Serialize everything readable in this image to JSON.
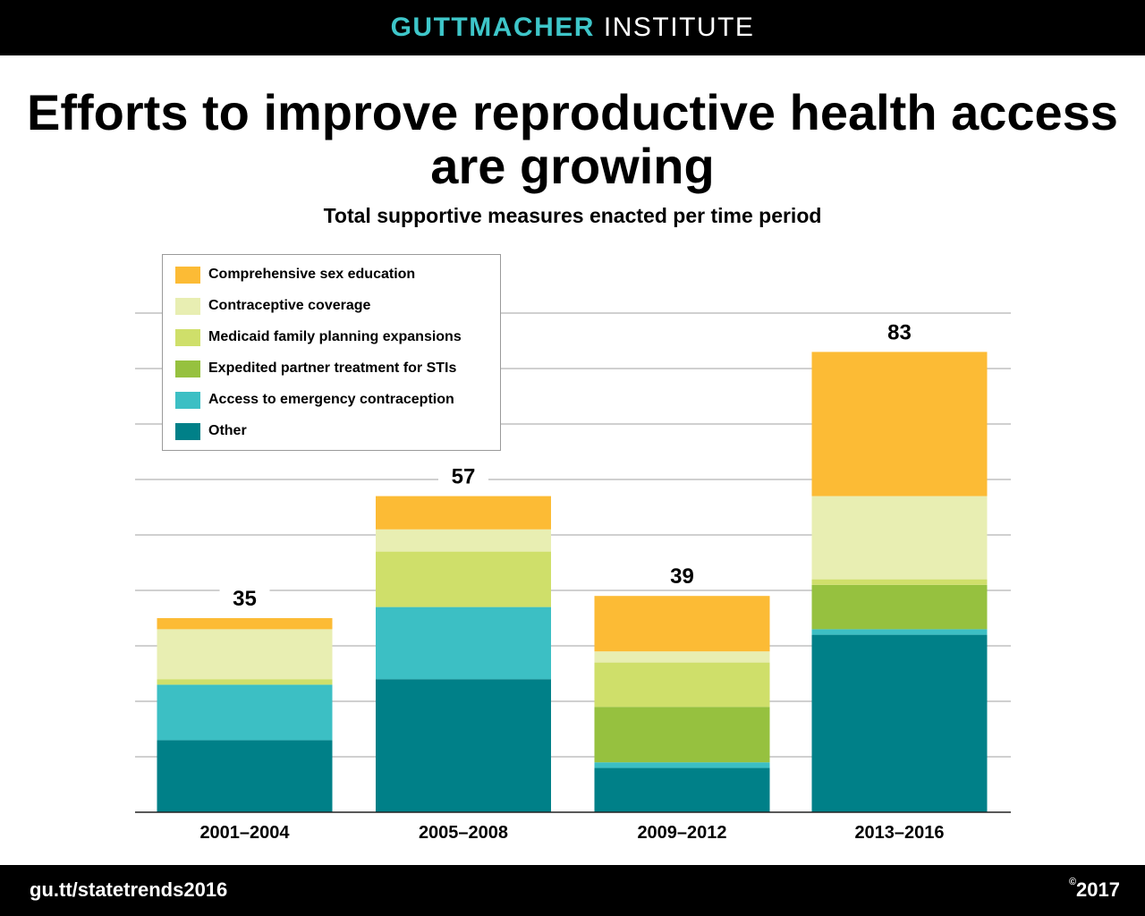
{
  "header": {
    "brand_part1": "GUTTMACHER",
    "brand_part2": "INSTITUTE",
    "brand_color": "#3ec6c9"
  },
  "footer": {
    "url": "gu.tt/statetrends2016",
    "copyright_symbol": "©",
    "year": "2017"
  },
  "chart_data": {
    "type": "bar",
    "stacked": true,
    "title": "Efforts to improve reproductive health access are growing",
    "subtitle": "Total supportive measures enacted per time period",
    "xlabel": "",
    "ylabel": "",
    "ylim": [
      0,
      90
    ],
    "grid": true,
    "legend_position": "top-left",
    "categories": [
      "2001–2004",
      "2005–2008",
      "2009–2012",
      "2013–2016"
    ],
    "totals": [
      35,
      57,
      39,
      83
    ],
    "total_labels": [
      "35",
      "57",
      "39",
      "83"
    ],
    "series": [
      {
        "name": "Other",
        "color": "#008088",
        "values": [
          13,
          24,
          8,
          32
        ]
      },
      {
        "name": "Access to emergency contraception",
        "color": "#3cbfc4",
        "values": [
          10,
          13,
          1,
          1
        ]
      },
      {
        "name": "Expedited partner treatment for STIs",
        "color": "#96c13f",
        "values": [
          0,
          0,
          10,
          8
        ]
      },
      {
        "name": "Medicaid family planning expansions",
        "color": "#cfdf6a",
        "values": [
          1,
          10,
          8,
          1
        ]
      },
      {
        "name": "Contraceptive coverage",
        "color": "#e8eeb2",
        "values": [
          9,
          4,
          2,
          15
        ]
      },
      {
        "name": "Comprehensive sex education",
        "color": "#fcbb35",
        "values": [
          2,
          6,
          10,
          26
        ]
      }
    ]
  }
}
